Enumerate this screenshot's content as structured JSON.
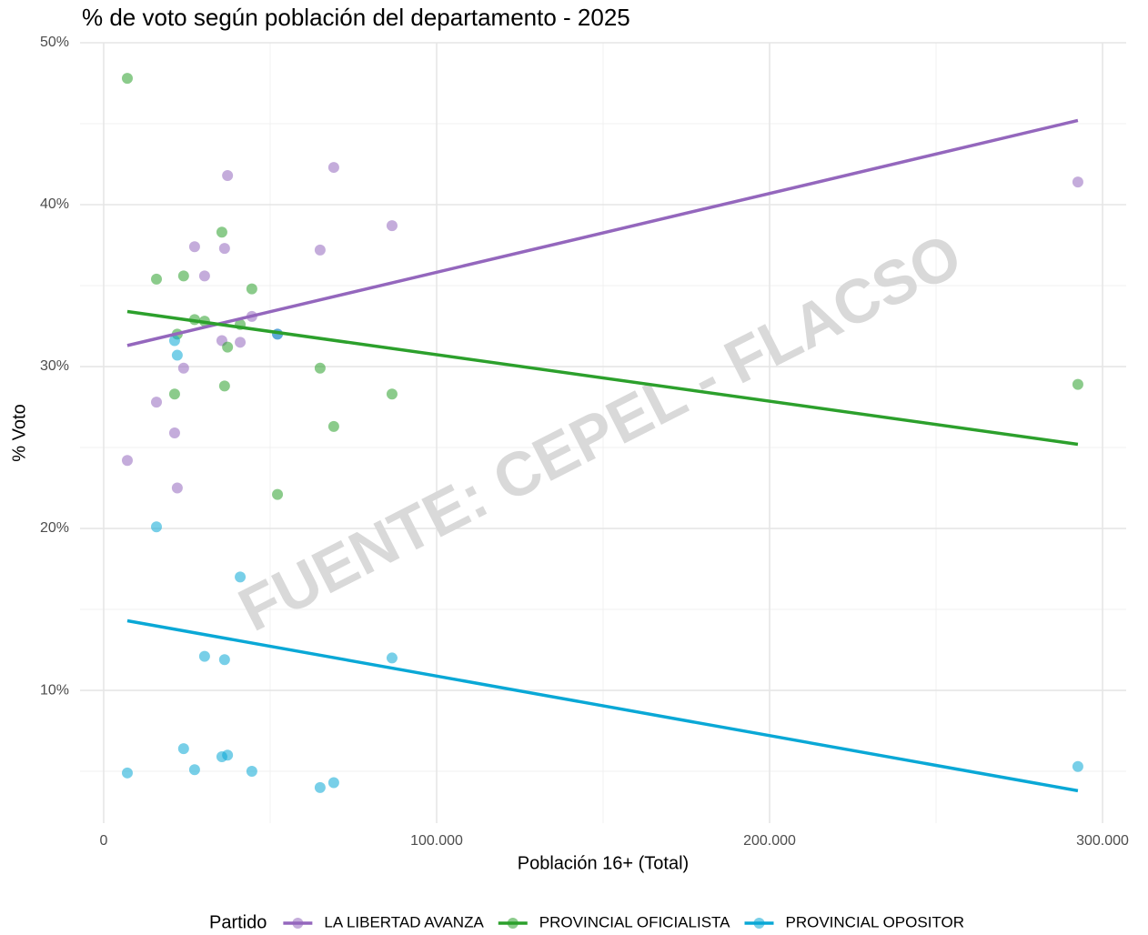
{
  "chart_data": {
    "type": "scatter",
    "title": "% de voto según población del departamento - 2025",
    "x_label": "Población 16+ (Total)",
    "y_label": "% Voto",
    "legend_title": "Partido",
    "legend": "bottom",
    "grid": true,
    "annotation": "FUENTE: CEPEL - FLACSO",
    "x": [
      7100,
      15850,
      21300,
      22100,
      24000,
      27300,
      30300,
      35500,
      36300,
      37200,
      41000,
      44500,
      52200,
      65000,
      69100,
      86600,
      292600
    ],
    "series": [
      {
        "name": "LA LIBERTAD AVANZA",
        "color": "#9467bd",
        "values": [
          24.2,
          27.8,
          25.9,
          22.5,
          29.9,
          37.4,
          35.6,
          31.6,
          37.3,
          41.8,
          31.5,
          33.1,
          32.0,
          37.2,
          42.3,
          38.7,
          41.4
        ],
        "trend": {
          "x": [
            7100,
            292600
          ],
          "values": [
            31.3,
            45.2
          ]
        }
      },
      {
        "name": "PROVINCIAL OFICIALISTA",
        "color": "#2ca02c",
        "values": [
          47.8,
          35.4,
          28.3,
          32.0,
          35.6,
          32.9,
          32.8,
          38.3,
          28.8,
          31.2,
          32.6,
          34.8,
          22.1,
          29.9,
          26.3,
          28.3,
          28.9
        ],
        "trend": {
          "x": [
            7100,
            292600
          ],
          "values": [
            33.4,
            25.2
          ]
        }
      },
      {
        "name": "PROVINCIAL OPOSITOR",
        "color": "#0aa8d6",
        "values": [
          4.9,
          20.1,
          31.6,
          30.7,
          6.4,
          5.1,
          12.1,
          5.9,
          11.9,
          6.0,
          17.0,
          5.0,
          32.0,
          4.0,
          4.3,
          12.0,
          5.3
        ],
        "trend": {
          "x": [
            7100,
            292600
          ],
          "values": [
            14.3,
            3.8
          ]
        }
      }
    ],
    "xlim": [
      -7100,
      307100
    ],
    "xticks": [
      0,
      {
        "value": 100000,
        "label": "100.000"
      },
      {
        "value": 200000,
        "label": "200.000"
      },
      {
        "value": 300000,
        "label": "300.000"
      }
    ],
    "ylim": [
      1.8,
      50
    ],
    "yticks": [
      {
        "value": 10,
        "label": "10%"
      },
      {
        "value": 20,
        "label": "20%"
      },
      {
        "value": 30,
        "label": "30%"
      },
      {
        "value": 40,
        "label": "40%"
      },
      {
        "value": 50,
        "label": "50%"
      }
    ]
  }
}
